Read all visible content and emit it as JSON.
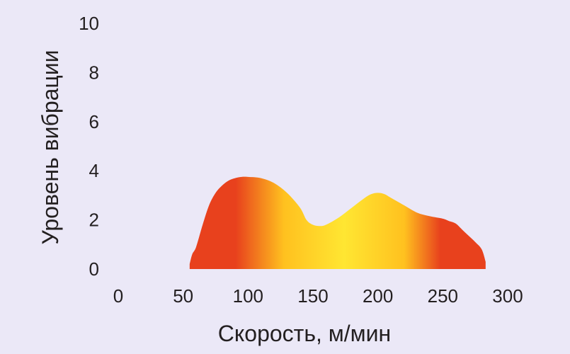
{
  "chart_data": {
    "type": "area",
    "title": "",
    "xlabel": "Скорость, м/мин",
    "ylabel": "Уровень вибрации",
    "xlim": [
      0,
      300
    ],
    "ylim": [
      0,
      10
    ],
    "x_ticks": [
      0,
      50,
      100,
      150,
      200,
      250,
      300
    ],
    "y_ticks": [
      0,
      2,
      4,
      6,
      8,
      10
    ],
    "grid": false,
    "series": [
      {
        "x": [
          55,
          57,
          60,
          65,
          70,
          75,
          80,
          85,
          90,
          95,
          100,
          110,
          120,
          130,
          140,
          145,
          150,
          155,
          160,
          170,
          180,
          190,
          195,
          200,
          205,
          210,
          220,
          230,
          240,
          250,
          255,
          260,
          265,
          270,
          275,
          280,
          283
        ],
        "y": [
          0.2,
          0.6,
          0.9,
          1.8,
          2.6,
          3.1,
          3.4,
          3.6,
          3.7,
          3.75,
          3.75,
          3.7,
          3.5,
          3.1,
          2.5,
          2.0,
          1.8,
          1.75,
          1.8,
          2.1,
          2.5,
          2.9,
          3.05,
          3.1,
          3.05,
          2.9,
          2.6,
          2.3,
          2.15,
          2.05,
          1.95,
          1.85,
          1.6,
          1.35,
          1.1,
          0.8,
          0.3
        ]
      }
    ],
    "colors": {
      "edge": "#e8411d",
      "center": "#ffe632",
      "mid": "#ffc11f"
    }
  }
}
